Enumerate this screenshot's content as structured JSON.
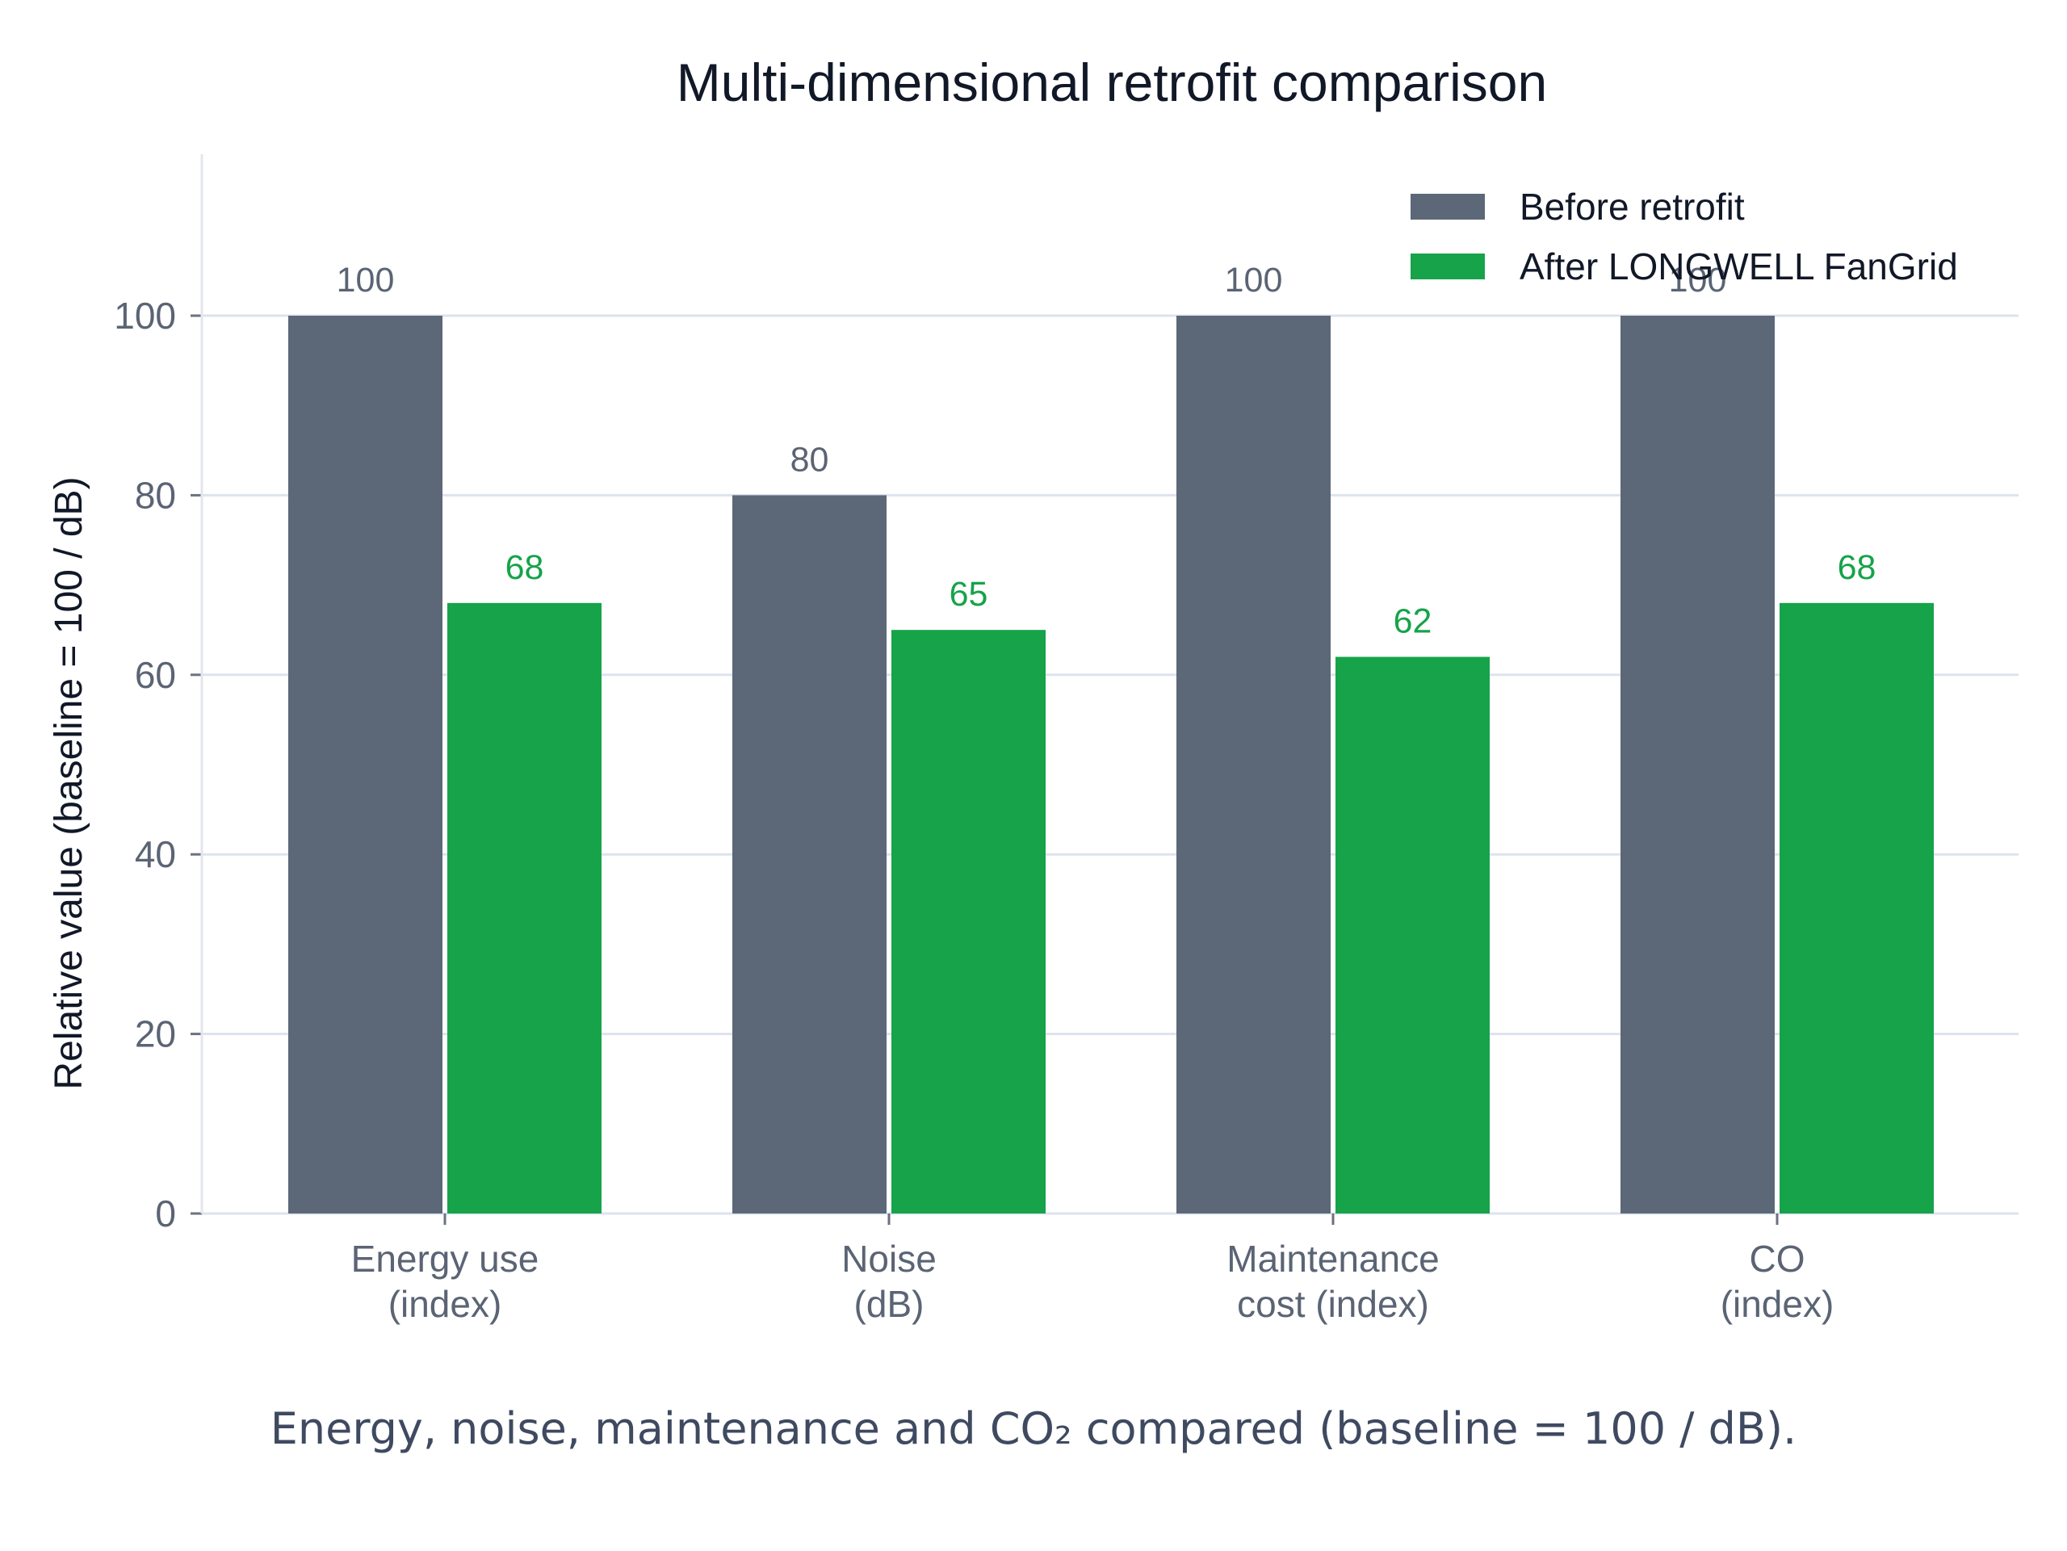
{
  "chart_data": {
    "type": "bar",
    "title": "Multi-dimensional retrofit comparison",
    "ylabel": "Relative value (baseline = 100 / dB)",
    "xlabel": "",
    "categories": [
      [
        "Energy use",
        "(index)"
      ],
      [
        "Noise",
        "(dB)"
      ],
      [
        "Maintenance",
        "cost (index)"
      ],
      [
        "CO",
        "(index)"
      ]
    ],
    "series": [
      {
        "name": "Before retrofit",
        "color": "#5c6878",
        "values": [
          100,
          80,
          100,
          100
        ]
      },
      {
        "name": "After LONGWELL FanGrid",
        "color": "#16a34a",
        "values": [
          68,
          65,
          62,
          68
        ]
      }
    ],
    "ylim": [
      0,
      118
    ],
    "yticks": [
      0,
      20,
      40,
      60,
      80,
      100
    ],
    "grid": true,
    "legend": "top-right",
    "caption": "Energy, noise, maintenance and CO₂ compared (baseline = 100 / dB)."
  }
}
